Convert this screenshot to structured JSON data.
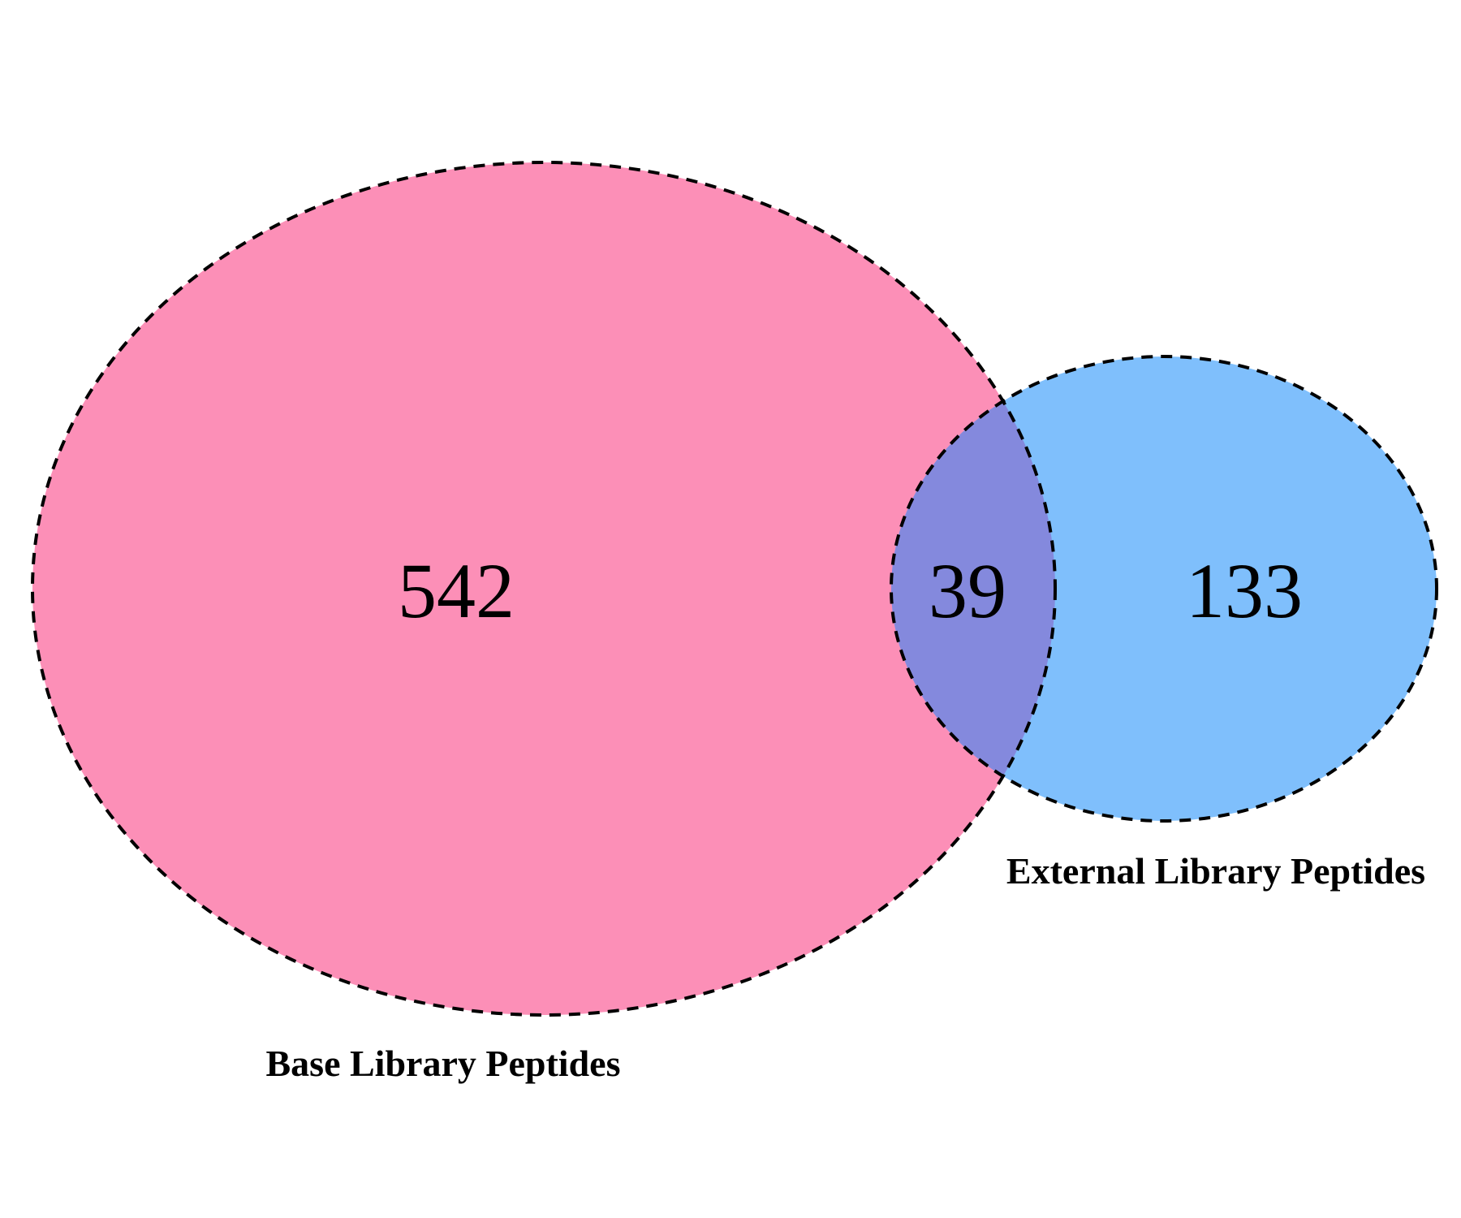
{
  "chart_data": {
    "type": "venn",
    "sets": [
      {
        "name": "Base Library Peptides",
        "color": "#fc8fb7"
      },
      {
        "name": "External Library Peptides",
        "color": "#7fbffc"
      }
    ],
    "overlap_color": "#8489dd",
    "outline": "dashed black",
    "regions": {
      "base_only": "542",
      "intersection": "39",
      "external_only": "133"
    }
  }
}
